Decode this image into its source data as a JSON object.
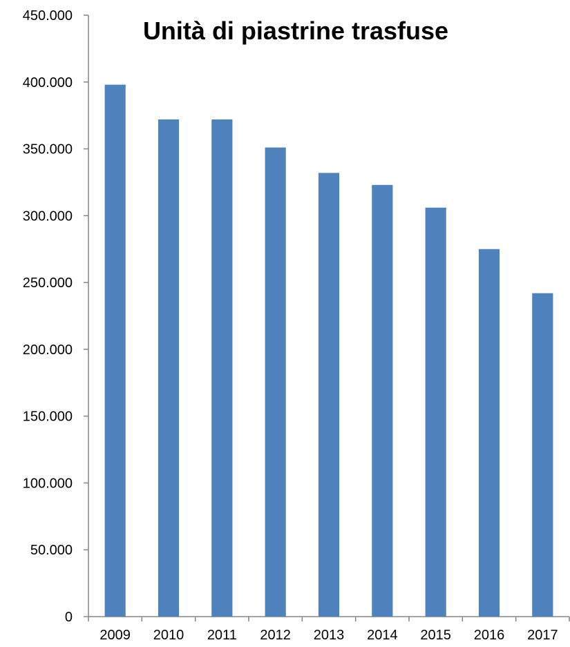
{
  "chart_data": {
    "type": "bar",
    "title": "Unità di piastrine trasfuse",
    "xlabel": "",
    "ylabel": "",
    "categories": [
      "2009",
      "2010",
      "2011",
      "2012",
      "2013",
      "2014",
      "2015",
      "2016",
      "2017"
    ],
    "series": [
      {
        "values": [
          398000,
          372000,
          372000,
          351000,
          332000,
          323000,
          306000,
          275000,
          242000
        ]
      }
    ],
    "ylim": [
      0,
      450000
    ],
    "yticks": [
      0,
      50000,
      100000,
      150000,
      200000,
      250000,
      300000,
      350000,
      400000,
      450000
    ],
    "ytick_labels": [
      "0",
      "50.000",
      "100.000",
      "150.000",
      "200.000",
      "250.000",
      "300.000",
      "350.000",
      "400.000",
      "450.000"
    ],
    "grid": false,
    "legend": "none",
    "colors": {
      "bar": "#4f81bd",
      "axis": "#868686"
    }
  }
}
